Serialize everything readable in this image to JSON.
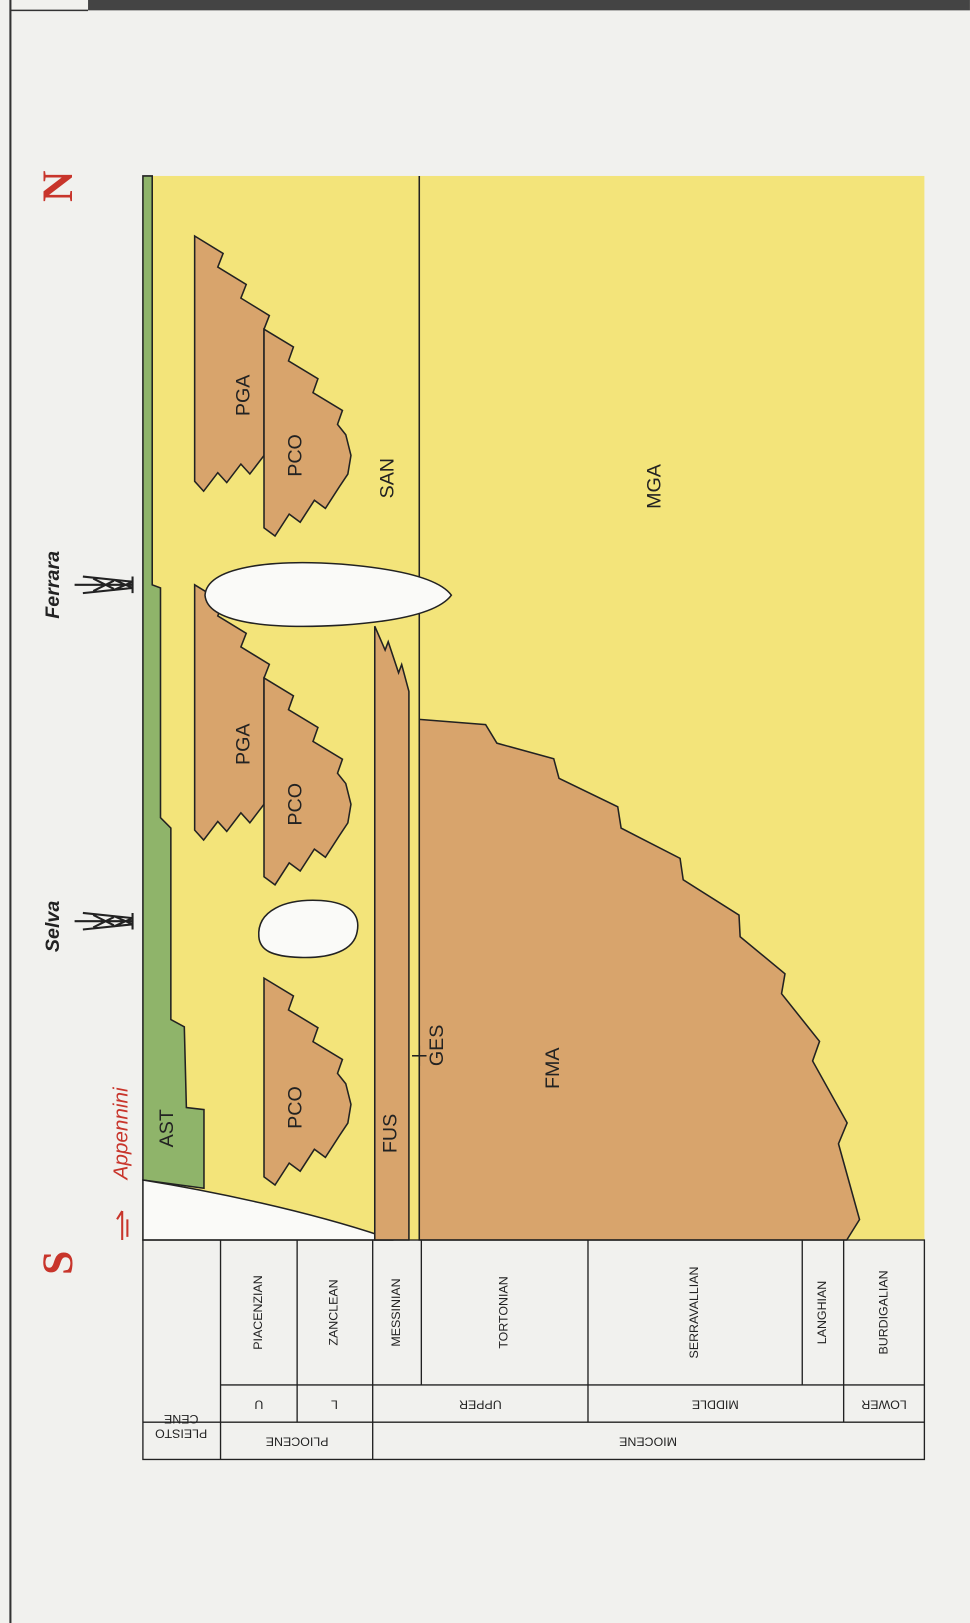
{
  "header": {
    "south": "S",
    "north": "N",
    "direction": "Appennini"
  },
  "wells": [
    "Selva",
    "Ferrara"
  ],
  "units": [
    "AST",
    "PGA",
    "PCO",
    "PGA",
    "PCO",
    "PCO",
    "SAN",
    "MGA",
    "FUS",
    "GES",
    "FMA"
  ],
  "timescale": {
    "stages": [
      "PIACENZIAN",
      "ZANCLEAN",
      "MESSINIAN",
      "TORTONIAN",
      "SERRAVALLIAN",
      "LANGHIAN",
      "BURDIGALIAN"
    ],
    "subseries": [
      "U",
      "L",
      "UPPER",
      "MIDDLE",
      "LOWER"
    ],
    "pleistocene": [
      "PLEISTO",
      "CENE"
    ],
    "series": [
      "PLIOCENE",
      "MIOCENE"
    ]
  }
}
